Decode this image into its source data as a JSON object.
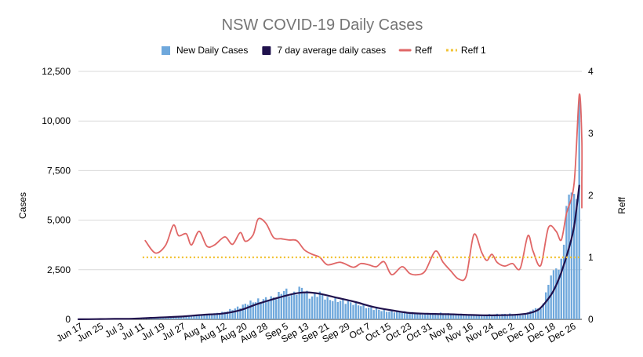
{
  "chart_data": {
    "type": "bar+line",
    "title": "NSW COVID-19 Daily Cases",
    "ylabel": "Cases",
    "y2label": "Reff",
    "ylim": [
      0,
      12500
    ],
    "y2lim": [
      0,
      4
    ],
    "yticks": [
      "0",
      "2,500",
      "5,000",
      "7,500",
      "10,000",
      "12,500"
    ],
    "yticks_values": [
      0,
      2500,
      5000,
      7500,
      10000,
      12500
    ],
    "y2ticks": [
      "0",
      "1",
      "2",
      "3",
      "4"
    ],
    "y2ticks_values": [
      0,
      1,
      2,
      3,
      4
    ],
    "x_start": "2021-06-16",
    "x_end": "2021-12-29",
    "x_ticks": [
      "Jun 17",
      "Jun 25",
      "Jul 3",
      "Jul 11",
      "Jul 19",
      "Jul 27",
      "Aug 4",
      "Aug 12",
      "Aug 20",
      "Aug 28",
      "Sep 5",
      "Sep 13",
      "Sep 21",
      "Sep 29",
      "Oct 7",
      "Oct 15",
      "Oct 23",
      "Oct 31",
      "Nov 8",
      "Nov 16",
      "Nov 24",
      "Dec 2",
      "Dec 10",
      "Dec 18",
      "Dec 26"
    ],
    "x_tick_dates": [
      "2021-06-17",
      "2021-06-25",
      "2021-07-03",
      "2021-07-11",
      "2021-07-19",
      "2021-07-27",
      "2021-08-04",
      "2021-08-12",
      "2021-08-20",
      "2021-08-28",
      "2021-09-05",
      "2021-09-13",
      "2021-09-21",
      "2021-09-29",
      "2021-10-07",
      "2021-10-15",
      "2021-10-23",
      "2021-10-31",
      "2021-11-08",
      "2021-11-16",
      "2021-11-24",
      "2021-12-02",
      "2021-12-10",
      "2021-12-18",
      "2021-12-26"
    ],
    "grid": true,
    "legend_position": "top",
    "series": [
      {
        "name": "New Daily Cases",
        "kind": "bar",
        "axis": "left",
        "color": "#6fa8dc",
        "points": [
          [
            "2021-06-16",
            3
          ],
          [
            "2021-06-23",
            16
          ],
          [
            "2021-06-30",
            27
          ],
          [
            "2021-07-07",
            38
          ],
          [
            "2021-07-14",
            97
          ],
          [
            "2021-07-21",
            110
          ],
          [
            "2021-07-28",
            177
          ],
          [
            "2021-08-04",
            233
          ],
          [
            "2021-08-11",
            344
          ],
          [
            "2021-08-18",
            633
          ],
          [
            "2021-08-21",
            825
          ],
          [
            "2021-08-28",
            1035
          ],
          [
            "2021-09-01",
            1116
          ],
          [
            "2021-09-04",
            1485
          ],
          [
            "2021-09-07",
            1220
          ],
          [
            "2021-09-11",
            1599
          ],
          [
            "2021-09-14",
            1127
          ],
          [
            "2021-09-18",
            1331
          ],
          [
            "2021-09-21",
            1022
          ],
          [
            "2021-09-25",
            961
          ],
          [
            "2021-10-01",
            813
          ],
          [
            "2021-10-07",
            587
          ],
          [
            "2021-10-14",
            406
          ],
          [
            "2021-10-21",
            371
          ],
          [
            "2021-10-28",
            268
          ],
          [
            "2021-11-04",
            308
          ],
          [
            "2021-11-11",
            261
          ],
          [
            "2021-11-18",
            216
          ],
          [
            "2021-11-25",
            251
          ],
          [
            "2021-12-02",
            271
          ],
          [
            "2021-12-06",
            208
          ],
          [
            "2021-12-09",
            420
          ],
          [
            "2021-12-11",
            560
          ],
          [
            "2021-12-13",
            536
          ],
          [
            "2021-12-14",
            804
          ],
          [
            "2021-12-15",
            1360
          ],
          [
            "2021-12-16",
            1742
          ],
          [
            "2021-12-17",
            2213
          ],
          [
            "2021-12-18",
            2482
          ],
          [
            "2021-12-19",
            2566
          ],
          [
            "2021-12-20",
            2501
          ],
          [
            "2021-12-21",
            3057
          ],
          [
            "2021-12-22",
            3763
          ],
          [
            "2021-12-23",
            5715
          ],
          [
            "2021-12-24",
            6288
          ],
          [
            "2021-12-25",
            6394
          ],
          [
            "2021-12-26",
            6324
          ],
          [
            "2021-12-27",
            6062
          ],
          [
            "2021-12-28",
            11201
          ]
        ]
      },
      {
        "name": "7 day average daily cases",
        "kind": "line",
        "axis": "left",
        "color": "#20124d",
        "points": [
          [
            "2021-06-16",
            2
          ],
          [
            "2021-06-23",
            12
          ],
          [
            "2021-06-30",
            22
          ],
          [
            "2021-07-07",
            32
          ],
          [
            "2021-07-14",
            74
          ],
          [
            "2021-07-21",
            109
          ],
          [
            "2021-07-28",
            160
          ],
          [
            "2021-08-04",
            235
          ],
          [
            "2021-08-11",
            290
          ],
          [
            "2021-08-18",
            462
          ],
          [
            "2021-08-25",
            787
          ],
          [
            "2021-09-01",
            1060
          ],
          [
            "2021-09-08",
            1295
          ],
          [
            "2021-09-13",
            1360
          ],
          [
            "2021-09-18",
            1290
          ],
          [
            "2021-09-25",
            1080
          ],
          [
            "2021-10-02",
            870
          ],
          [
            "2021-10-09",
            620
          ],
          [
            "2021-10-16",
            455
          ],
          [
            "2021-10-23",
            320
          ],
          [
            "2021-10-30",
            280
          ],
          [
            "2021-11-06",
            260
          ],
          [
            "2021-11-13",
            235
          ],
          [
            "2021-11-20",
            205
          ],
          [
            "2021-11-27",
            210
          ],
          [
            "2021-12-03",
            230
          ],
          [
            "2021-12-08",
            300
          ],
          [
            "2021-12-12",
            480
          ],
          [
            "2021-12-15",
            880
          ],
          [
            "2021-12-18",
            1450
          ],
          [
            "2021-12-21",
            2360
          ],
          [
            "2021-12-24",
            3600
          ],
          [
            "2021-12-26",
            4700
          ],
          [
            "2021-12-28",
            6740
          ]
        ]
      },
      {
        "name": "Reff",
        "kind": "line",
        "axis": "right",
        "color": "#e06666",
        "points": [
          [
            "2021-07-12",
            1.27
          ],
          [
            "2021-07-16",
            1.07
          ],
          [
            "2021-07-20",
            1.2
          ],
          [
            "2021-07-23",
            1.52
          ],
          [
            "2021-07-25",
            1.35
          ],
          [
            "2021-07-28",
            1.38
          ],
          [
            "2021-07-30",
            1.2
          ],
          [
            "2021-08-02",
            1.42
          ],
          [
            "2021-08-05",
            1.18
          ],
          [
            "2021-08-08",
            1.2
          ],
          [
            "2021-08-12",
            1.33
          ],
          [
            "2021-08-15",
            1.21
          ],
          [
            "2021-08-18",
            1.4
          ],
          [
            "2021-08-20",
            1.26
          ],
          [
            "2021-08-23",
            1.36
          ],
          [
            "2021-08-25",
            1.62
          ],
          [
            "2021-08-28",
            1.55
          ],
          [
            "2021-08-31",
            1.32
          ],
          [
            "2021-09-03",
            1.3
          ],
          [
            "2021-09-06",
            1.28
          ],
          [
            "2021-09-09",
            1.27
          ],
          [
            "2021-09-12",
            1.12
          ],
          [
            "2021-09-15",
            1.05
          ],
          [
            "2021-09-18",
            1.0
          ],
          [
            "2021-09-21",
            0.88
          ],
          [
            "2021-09-26",
            0.92
          ],
          [
            "2021-10-01",
            0.84
          ],
          [
            "2021-10-04",
            0.9
          ],
          [
            "2021-10-07",
            0.88
          ],
          [
            "2021-10-10",
            0.85
          ],
          [
            "2021-10-13",
            0.93
          ],
          [
            "2021-10-16",
            0.72
          ],
          [
            "2021-10-20",
            0.85
          ],
          [
            "2021-10-23",
            0.74
          ],
          [
            "2021-10-26",
            0.72
          ],
          [
            "2021-10-29",
            0.78
          ],
          [
            "2021-11-02",
            1.1
          ],
          [
            "2021-11-05",
            0.92
          ],
          [
            "2021-11-08",
            0.78
          ],
          [
            "2021-11-11",
            0.65
          ],
          [
            "2021-11-14",
            0.7
          ],
          [
            "2021-11-17",
            1.37
          ],
          [
            "2021-11-20",
            1.08
          ],
          [
            "2021-11-22",
            0.95
          ],
          [
            "2021-11-24",
            1.05
          ],
          [
            "2021-11-26",
            0.92
          ],
          [
            "2021-11-29",
            0.86
          ],
          [
            "2021-12-02",
            0.9
          ],
          [
            "2021-12-05",
            0.82
          ],
          [
            "2021-12-08",
            1.35
          ],
          [
            "2021-12-10",
            1.1
          ],
          [
            "2021-12-13",
            0.87
          ],
          [
            "2021-12-16",
            1.48
          ],
          [
            "2021-12-19",
            1.42
          ],
          [
            "2021-12-21",
            1.28
          ],
          [
            "2021-12-23",
            1.7
          ],
          [
            "2021-12-26",
            2.2
          ],
          [
            "2021-12-28",
            3.62
          ],
          [
            "2021-12-30",
            2.9
          ],
          [
            "2021-12-31",
            2.2
          ],
          [
            "2022-01-01",
            2.1
          ],
          [
            "2022-01-03",
            2.3
          ],
          [
            "2022-01-05",
            2.2
          ],
          [
            "2022-01-06",
            1.8
          ]
        ]
      },
      {
        "name": "Reff 1",
        "kind": "line",
        "axis": "right",
        "style": "dotted",
        "color": "#f1c232",
        "points": [
          [
            "2021-07-11",
            1
          ],
          [
            "2021-12-28",
            1
          ]
        ]
      }
    ]
  }
}
